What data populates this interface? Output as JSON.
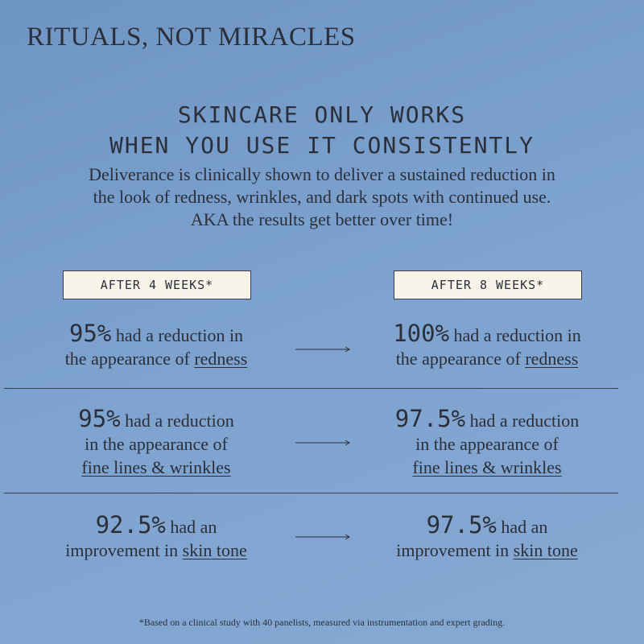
{
  "brand": "RITUALS, NOT MIRACLES",
  "headline": [
    "SKINCARE ONLY WORKS",
    "WHEN YOU USE IT CONSISTENTLY"
  ],
  "intro": [
    "Deliverance is clinically shown to deliver a sustained reduction in",
    "the look of redness, wrinkles, and dark spots with continued use.",
    "AKA the results get better over time!"
  ],
  "columns": [
    "AFTER 4 WEEKS*",
    "AFTER 8 WEEKS*"
  ],
  "rows": [
    {
      "before": {
        "stat": "95%",
        "lines": [
          "had a reduction in",
          "the appearance of"
        ],
        "term": "redness"
      },
      "after": {
        "stat": "100%",
        "lines": [
          "had a reduction in",
          "the appearance of"
        ],
        "term": "redness"
      }
    },
    {
      "before": {
        "stat": "95%",
        "lines": [
          "had a reduction",
          "in the appearance of"
        ],
        "term": "fine lines & wrinkles"
      },
      "after": {
        "stat": "97.5%",
        "lines": [
          "had a reduction",
          "in the appearance of"
        ],
        "term": "fine lines & wrinkles"
      }
    },
    {
      "before": {
        "stat": "92.5%",
        "lines": [
          "had an",
          "improvement in"
        ],
        "term": "skin tone"
      },
      "after": {
        "stat": "97.5%",
        "lines": [
          "had an",
          "improvement in"
        ],
        "term": "skin tone"
      }
    }
  ],
  "footnote": "*Based on a clinical study with 40 panelists, measured via instrumentation and expert grading."
}
